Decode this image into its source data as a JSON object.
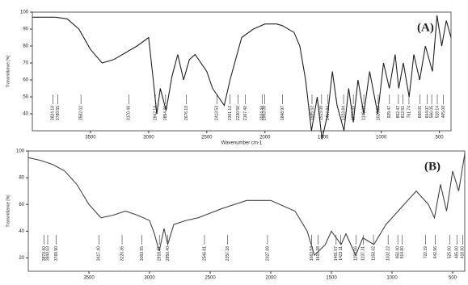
{
  "chart_data": [
    {
      "type": "line",
      "title": "(A)",
      "x_label": "Wavenumber cm-1",
      "y_label": "Transmittance [%]",
      "color": "#222222",
      "x": [
        4000,
        3900,
        3800,
        3700,
        3600,
        3500,
        3400,
        3300,
        3200,
        3100,
        3000,
        2960,
        2930,
        2900,
        2850,
        2800,
        2750,
        2700,
        2650,
        2600,
        2500,
        2450,
        2400,
        2350,
        2300,
        2200,
        2100,
        2000,
        1900,
        1850,
        1750,
        1700,
        1650,
        1600,
        1550,
        1510,
        1460,
        1420,
        1380,
        1320,
        1280,
        1240,
        1200,
        1150,
        1100,
        1030,
        980,
        930,
        880,
        850,
        810,
        760,
        720,
        670,
        620,
        560,
        520,
        480,
        440,
        400
      ],
      "y": [
        97,
        97,
        97,
        96,
        90,
        78,
        70,
        72,
        76,
        80,
        85,
        60,
        40,
        55,
        42,
        62,
        75,
        60,
        72,
        75,
        65,
        55,
        50,
        45,
        60,
        85,
        90,
        93,
        93,
        92,
        88,
        80,
        60,
        30,
        50,
        25,
        40,
        65,
        45,
        30,
        55,
        35,
        60,
        40,
        65,
        40,
        70,
        55,
        75,
        55,
        70,
        50,
        75,
        60,
        80,
        65,
        98,
        80,
        95,
        85
      ],
      "xlim": [
        4000,
        400
      ],
      "ylim": [
        30,
        100
      ],
      "xticks": [
        3500,
        3000,
        2500,
        2000,
        1500,
        1000,
        500
      ],
      "yticks": [
        40,
        50,
        60,
        70,
        80,
        90,
        100
      ],
      "peaks": [
        {
          "value": 3824.1,
          "label": "3824.10"
        },
        {
          "value": 3780.55,
          "label": "3780.55"
        },
        {
          "value": 3582.02,
          "label": "3582.02"
        },
        {
          "value": 3170.4,
          "label": "3170.40"
        },
        {
          "value": 2942.14,
          "label": "2942.14"
        },
        {
          "value": 2854.46,
          "label": "2854.46"
        },
        {
          "value": 2676.13,
          "label": "2676.13"
        },
        {
          "value": 2413.53,
          "label": "2413.53"
        },
        {
          "value": 2301.12,
          "label": "2301.12"
        },
        {
          "value": 2230.5,
          "label": "2230.50"
        },
        {
          "value": 2167.4,
          "label": "2167.40"
        },
        {
          "value": 2024.4,
          "label": "2024.40"
        },
        {
          "value": 2003,
          "label": "2003.00"
        },
        {
          "value": 1848.97,
          "label": "1848.97"
        },
        {
          "value": 1595.52,
          "label": "1595.52"
        },
        {
          "value": 1513.09,
          "label": "1513.09"
        },
        {
          "value": 1457.84,
          "label": "1457.84"
        },
        {
          "value": 1323.84,
          "label": "1323.84"
        },
        {
          "value": 1239.89,
          "label": "1239.89"
        },
        {
          "value": 1149.83,
          "label": "1149.83"
        },
        {
          "value": 1025.8,
          "label": "1025.80"
        },
        {
          "value": 929.47,
          "label": "929.47"
        },
        {
          "value": 852.47,
          "label": "852.47"
        },
        {
          "value": 812.51,
          "label": "812.51"
        },
        {
          "value": 761.74,
          "label": "761.74"
        },
        {
          "value": 668.01,
          "label": "668.01"
        },
        {
          "value": 604.07,
          "label": "604.07"
        },
        {
          "value": 566.05,
          "label": "566.05"
        },
        {
          "value": 518.14,
          "label": "518.14"
        },
        {
          "value": 465,
          "label": "465.00"
        }
      ]
    },
    {
      "type": "line",
      "title": "(B)",
      "y_label": "Transmittance [%]",
      "color": "#444444",
      "x": [
        4000,
        3900,
        3800,
        3700,
        3600,
        3500,
        3400,
        3300,
        3200,
        3100,
        3000,
        2960,
        2920,
        2880,
        2850,
        2800,
        2700,
        2600,
        2400,
        2200,
        2000,
        1800,
        1700,
        1640,
        1550,
        1500,
        1420,
        1380,
        1300,
        1240,
        1150,
        1050,
        950,
        850,
        800,
        700,
        650,
        600,
        550,
        500,
        450,
        400
      ],
      "y": [
        95,
        93,
        90,
        85,
        75,
        60,
        50,
        52,
        55,
        52,
        48,
        38,
        25,
        42,
        30,
        45,
        48,
        50,
        57,
        63,
        63,
        55,
        40,
        22,
        30,
        40,
        30,
        38,
        22,
        35,
        30,
        45,
        55,
        65,
        70,
        60,
        50,
        75,
        55,
        85,
        70,
        98
      ],
      "xlim": [
        4000,
        400
      ],
      "ylim": [
        10,
        100
      ],
      "xticks": [
        3500,
        3000,
        2500,
        2000,
        1500,
        1000,
        500
      ],
      "yticks": [
        20,
        40,
        60,
        80,
        100
      ],
      "peaks": [
        {
          "value": 3870.4,
          "label": "3870.40"
        },
        {
          "value": 3840.03,
          "label": "3840.03"
        },
        {
          "value": 3769.9,
          "label": "3769.90"
        },
        {
          "value": 3417.4,
          "label": "3417.40"
        },
        {
          "value": 3226.36,
          "label": "3226.36"
        },
        {
          "value": 3063.55,
          "label": "3063.55"
        },
        {
          "value": 2918.71,
          "label": "2918.71"
        },
        {
          "value": 2850.4,
          "label": "2850.40"
        },
        {
          "value": 2546.81,
          "label": "2546.81"
        },
        {
          "value": 2357.18,
          "label": "2357.18"
        },
        {
          "value": 2027.09,
          "label": "2027.09"
        },
        {
          "value": 1663.53,
          "label": "1663.53"
        },
        {
          "value": 1610.28,
          "label": "1610.28"
        },
        {
          "value": 1461.07,
          "label": "1461.07"
        },
        {
          "value": 1423.11,
          "label": "1423.11"
        },
        {
          "value": 1298.06,
          "label": "1298.06"
        },
        {
          "value": 1237.31,
          "label": "1237.31"
        },
        {
          "value": 1153.02,
          "label": "1153.02"
        },
        {
          "value": 1032.22,
          "label": "1032.22"
        },
        {
          "value": 952.4,
          "label": "952.40"
        },
        {
          "value": 914.9,
          "label": "914.90"
        },
        {
          "value": 722.19,
          "label": "722.19"
        },
        {
          "value": 642.96,
          "label": "642.96"
        },
        {
          "value": 525,
          "label": "525.00"
        },
        {
          "value": 465,
          "label": "465.00"
        },
        {
          "value": 418,
          "label": "418.00"
        }
      ]
    }
  ]
}
